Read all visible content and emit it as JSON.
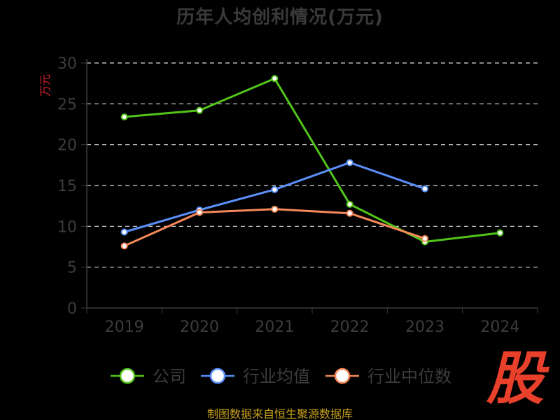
{
  "chart_data": {
    "type": "line",
    "title": "历年人均创利情况(万元)",
    "ylabel": "万元",
    "xlabel": "",
    "categories": [
      "2019",
      "2020",
      "2021",
      "2022",
      "2023",
      "2024"
    ],
    "ylim": [
      0,
      30
    ],
    "yticks": [
      0,
      5,
      10,
      15,
      20,
      25,
      30
    ],
    "grid": true,
    "legend_position": "bottom",
    "series": [
      {
        "name": "公司",
        "color": "#52c41a",
        "values": [
          23.4,
          24.2,
          28.1,
          12.7,
          8.1,
          9.2
        ]
      },
      {
        "name": "行业均值",
        "color": "#5b8ff9",
        "values": [
          9.3,
          12.0,
          14.5,
          17.8,
          14.6,
          null
        ]
      },
      {
        "name": "行业中位数",
        "color": "#f6895a",
        "values": [
          7.6,
          11.7,
          12.1,
          11.6,
          8.5,
          null
        ]
      }
    ]
  },
  "source_note": "制图数据来自恒生聚源数据库",
  "watermark_text": "股"
}
